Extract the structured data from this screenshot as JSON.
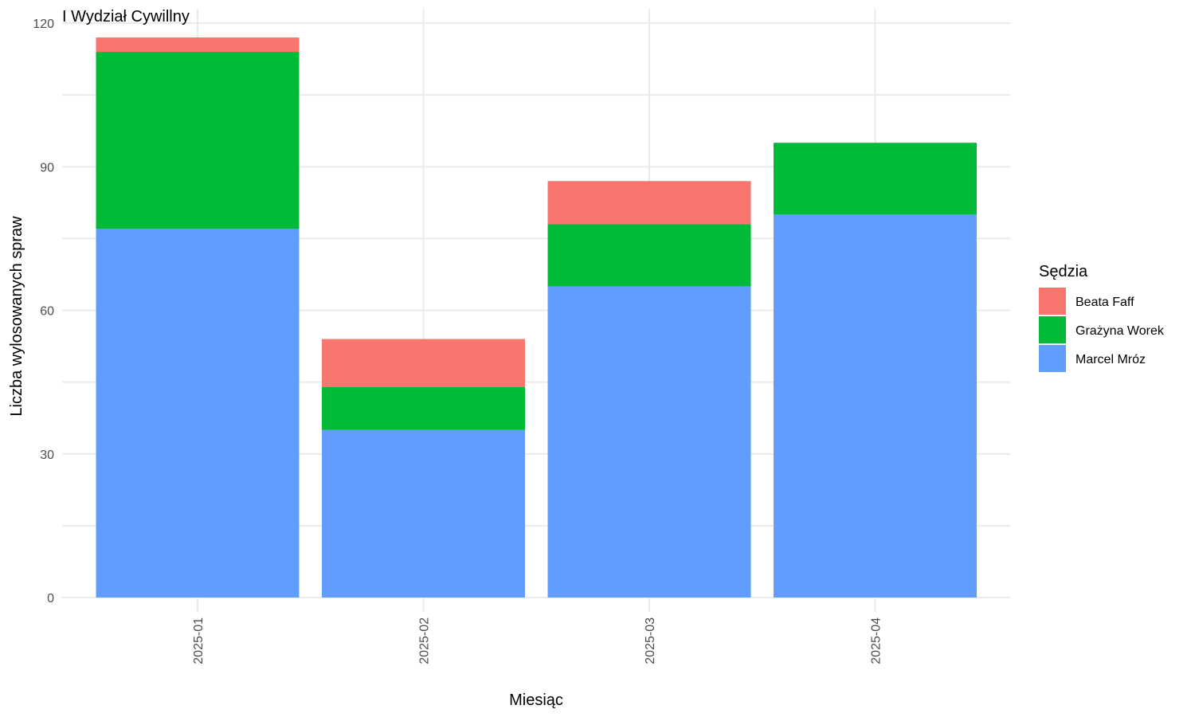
{
  "chart_data": {
    "type": "bar",
    "stacked": true,
    "title": "I Wydział Cywillny",
    "xlabel": "Miesiąc",
    "ylabel": "Liczba wylosowanych spraw",
    "categories": [
      "2025-01",
      "2025-02",
      "2025-03",
      "2025-04"
    ],
    "ylim": [
      0,
      120
    ],
    "yticks": [
      0,
      30,
      60,
      90,
      120
    ],
    "grid": true,
    "legend_title": "Sędzia",
    "legend_position": "right",
    "series": [
      {
        "name": "Marcel Mróz",
        "color": "#619CFF",
        "values": [
          77,
          35,
          65,
          80
        ]
      },
      {
        "name": "Grażyna Worek",
        "color": "#00BA38",
        "values": [
          37,
          9,
          13,
          15
        ]
      },
      {
        "name": "Beata Faff",
        "color": "#F8766D",
        "values": [
          3,
          10,
          9,
          0
        ]
      }
    ],
    "legend_order": [
      "Beata Faff",
      "Grażyna Worek",
      "Marcel Mróz"
    ]
  }
}
